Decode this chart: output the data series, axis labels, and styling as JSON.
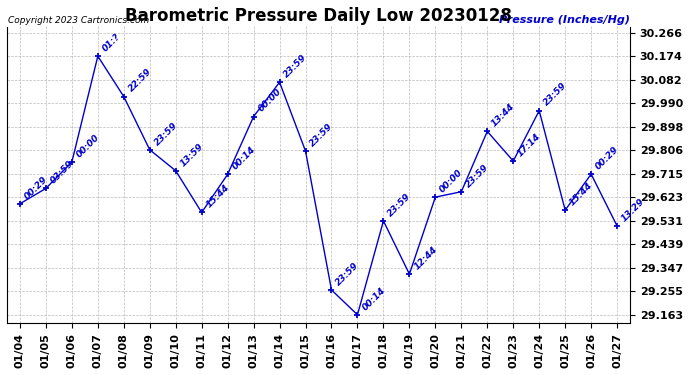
{
  "title": "Barometric Pressure Daily Low 20230128",
  "ylabel": "Pressure (Inches/Hg)",
  "copyright": "Copyright 2023 Cartronics.com",
  "background_color": "#ffffff",
  "line_color": "#0000cc",
  "grid_color": "#aaaaaa",
  "dates": [
    "01/04",
    "01/05",
    "01/06",
    "01/07",
    "01/08",
    "01/09",
    "01/10",
    "01/11",
    "01/12",
    "01/13",
    "01/14",
    "01/15",
    "01/16",
    "01/17",
    "01/18",
    "01/19",
    "01/20",
    "01/21",
    "01/22",
    "01/23",
    "01/24",
    "01/25",
    "01/26",
    "01/27"
  ],
  "values": [
    29.597,
    29.657,
    29.76,
    30.174,
    30.016,
    29.808,
    29.726,
    29.563,
    29.712,
    29.938,
    30.072,
    29.803,
    29.26,
    29.163,
    29.53,
    29.322,
    29.623,
    29.644,
    29.88,
    29.764,
    29.961,
    29.572,
    29.713,
    29.51
  ],
  "point_labels": [
    "00:29",
    "03:59",
    "00:00",
    "01:?",
    "22:59",
    "23:59",
    "13:59",
    "15:44",
    "00:14",
    "00:00",
    "23:59",
    "23:59",
    "23:59",
    "00:14",
    "23:59",
    "12:44",
    "00:00",
    "23:59",
    "13:44",
    "17:14",
    "23:59",
    "15:44",
    "00:29",
    "13:29"
  ],
  "yticks": [
    29.163,
    29.255,
    29.347,
    29.439,
    29.531,
    29.623,
    29.715,
    29.806,
    29.898,
    29.99,
    30.082,
    30.174,
    30.266
  ],
  "ylim_min": 29.13,
  "ylim_max": 30.29,
  "title_fontsize": 12,
  "tick_fontsize": 8,
  "point_label_fontsize": 6.5,
  "copyright_fontsize": 6.5,
  "ylabel_fontsize": 8
}
